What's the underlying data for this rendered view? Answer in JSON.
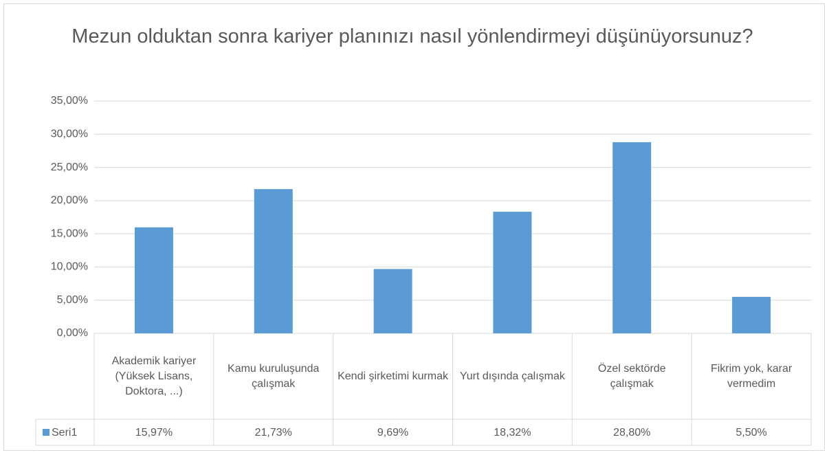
{
  "chart_data": {
    "type": "bar",
    "title": "Mezun olduktan sonra kariyer planınızı nasıl yönlendirmeyi düşünüyorsunuz?",
    "categories": [
      "Akademik kariyer (Yüksek Lisans, Doktora, ...)",
      "Kamu kuruluşunda çalışmak",
      "Kendi şirketimi kurmak",
      "Yurt dışında çalışmak",
      "Özel sektörde çalışmak",
      "Fikrim yok, karar vermedim"
    ],
    "series": [
      {
        "name": "Seri1",
        "color": "#5b9bd5",
        "values": [
          15.97,
          21.73,
          9.69,
          18.32,
          28.8,
          5.5
        ],
        "value_labels": [
          "15,97%",
          "21,73%",
          "9,69%",
          "18,32%",
          "28,80%",
          "5,50%"
        ]
      }
    ],
    "ylim": [
      0,
      35
    ],
    "yticks": [
      {
        "value": 0,
        "label": "0,00%"
      },
      {
        "value": 5,
        "label": "5,00%"
      },
      {
        "value": 10,
        "label": "10,00%"
      },
      {
        "value": 15,
        "label": "15,00%"
      },
      {
        "value": 20,
        "label": "20,00%"
      },
      {
        "value": 25,
        "label": "25,00%"
      },
      {
        "value": 30,
        "label": "30,00%"
      },
      {
        "value": 35,
        "label": "35,00%"
      }
    ],
    "grid": true
  }
}
